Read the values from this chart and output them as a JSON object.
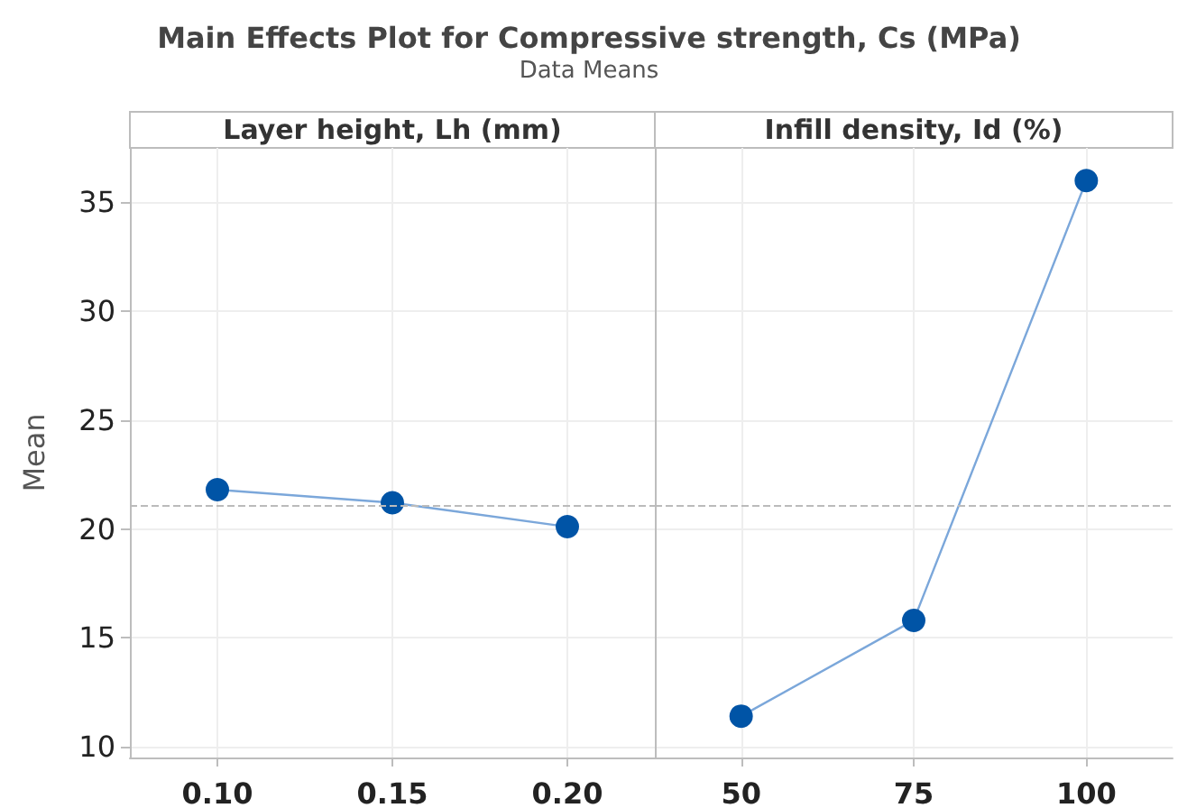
{
  "chart_data": [
    {
      "type": "line",
      "title": "Main Effects Plot for Compressive strength, Cs (MPa)",
      "subtitle": "Data Means",
      "xlabel": "Layer height, Lh (mm)",
      "ylabel": "Mean",
      "categories": [
        "0.10",
        "0.15",
        "0.20"
      ],
      "series": [
        {
          "color": "#0054a6",
          "values": [
            21.8,
            21.2,
            20.1
          ]
        }
      ],
      "ylim": [
        9.5,
        37.5
      ],
      "yticks": [
        10,
        15,
        20,
        25,
        30,
        35
      ],
      "grid": true,
      "marker": "circle",
      "line_style": "solid",
      "ref_lines": [
        {
          "axis": "y",
          "value": 21.05,
          "color": "#bbbbbb",
          "line_style": "dashed"
        }
      ]
    },
    {
      "type": "line",
      "xlabel": "Infill density, Id (%)",
      "categories": [
        "50",
        "75",
        "100"
      ],
      "series": [
        {
          "color": "#0054a6",
          "values": [
            11.4,
            15.8,
            36.0
          ]
        }
      ],
      "ylim": [
        9.5,
        37.5
      ],
      "yticks": [
        10,
        15,
        20,
        25,
        30,
        35
      ],
      "grid": true,
      "marker": "circle",
      "line_style": "solid",
      "tick_labels": "x",
      "ref_lines": [
        {
          "axis": "y",
          "value": 21.05,
          "color": "#bbbbbb",
          "line_style": "dashed"
        }
      ]
    }
  ]
}
